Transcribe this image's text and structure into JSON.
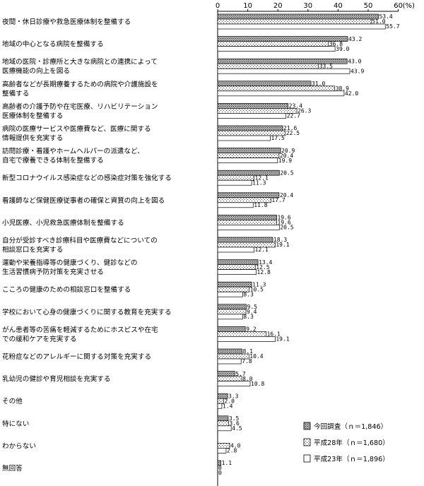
{
  "chart_data": {
    "type": "bar",
    "orientation": "horizontal",
    "title": "",
    "xlabel": "",
    "ylabel": "",
    "unit": "(%)",
    "xlim": [
      0,
      60
    ],
    "xticks": [
      "0",
      "10",
      "20",
      "30",
      "40",
      "50",
      "60"
    ],
    "categories": [
      [
        "夜間・休日診療や救急医療体制を整備する"
      ],
      [
        "地域の中心となる病院を整備する"
      ],
      [
        "地域の医院・診療所と大きな病院との連携によって",
        "医療機能の向上を図る"
      ],
      [
        "高齢者などが長期療養するための病院や介護施設を",
        "整備する"
      ],
      [
        "高齢者の介護予防や在宅医療、リハビリテーション",
        "医療体制を整備する"
      ],
      [
        "病院の医療サービスや医療費など、医療に関する",
        "情報提供を充実する"
      ],
      [
        "訪問診療・看護やホームヘルパーの派遣など、",
        "自宅で療養できる体制を整備する"
      ],
      [
        "新型コロナウイルス感染症などの感染症対策を強化する"
      ],
      [
        "看護師など保健医療従事者の確保と資質の向上を図る"
      ],
      [
        "小児医療、小児救急医療体制を整備する"
      ],
      [
        "自分が受診すべき診療科目や医療費などについての",
        "相談窓口を充実する"
      ],
      [
        "運動や栄養指導等の健康づくり、健診などの",
        "生活習慣病予防対策を充実させる"
      ],
      [
        "こころの健康のための相談窓口を整備する"
      ],
      [
        "学校において心身の健康づくりに関する教育を充実する"
      ],
      [
        "がん患者等の苦痛を軽減するためにホスピスや在宅",
        "での緩和ケアを充実する"
      ],
      [
        "花粉症などのアレルギーに関する対策を充実する"
      ],
      [
        "乳幼児の健診や育児相談を充実する"
      ],
      [
        "その他"
      ],
      [
        "特にない"
      ],
      [
        "わからない"
      ],
      [
        "無回答"
      ]
    ],
    "series": [
      {
        "name": "今回調査（ｎ＝1,846）",
        "pattern": "dense-dots",
        "values": [
          53.4,
          43.2,
          43.0,
          31.0,
          23.4,
          21.6,
          20.9,
          20.5,
          20.4,
          19.6,
          18.3,
          13.4,
          11.3,
          9.5,
          9.2,
          8.1,
          5.7,
          3.3,
          3.5,
          0,
          1.1
        ],
        "labels": [
          "53.4",
          "43.2",
          "43.0",
          "31.0",
          "23.4",
          "21.6",
          "20.9",
          "20.5",
          "20.4",
          "19.6",
          "18.3",
          "13.4",
          "11.3",
          "9.5",
          "9.2",
          "8.1",
          "5.7",
          "3.3",
          "3.5",
          "",
          "1.1"
        ]
      },
      {
        "name": "平成28年（ｎ＝1,680）",
        "pattern": "sparse-dots",
        "values": [
          51.0,
          36.8,
          33.5,
          38.9,
          26.3,
          22.5,
          20.4,
          12.1,
          17.7,
          19.6,
          19.1,
          12.5,
          10.5,
          9.4,
          16.1,
          10.4,
          8.0,
          2.0,
          3.6,
          4.0,
          0
        ],
        "labels": [
          "51.0",
          "36.8",
          "33.5",
          "38.9",
          "26.3",
          "22.5",
          "20.4",
          "12.1",
          "17.7",
          "19.6",
          "19.1",
          "12.5",
          "10.5",
          "9.4",
          "16.1",
          "10.4",
          "8.0",
          "2.0",
          "3.6",
          "4.0",
          "0"
        ]
      },
      {
        "name": "平成23年（ｎ＝1,896）",
        "pattern": "blank",
        "values": [
          55.7,
          39.0,
          43.9,
          42.0,
          22.7,
          17.5,
          19.9,
          11.3,
          11.8,
          20.5,
          12.1,
          12.8,
          8.3,
          8.3,
          19.1,
          7.8,
          10.8,
          1.4,
          4.5,
          2.8,
          0
        ],
        "labels": [
          "55.7",
          "39.0",
          "43.9",
          "42.0",
          "22.7",
          "17.5",
          "19.9",
          "11.3",
          "11.8",
          "20.5",
          "12.1",
          "12.8",
          "8.3",
          "8.3",
          "19.1",
          "7.8",
          "10.8",
          "1.4",
          "4.5",
          "2.8",
          "0"
        ]
      }
    ],
    "legend_position": "bottom-right",
    "grid": false
  }
}
